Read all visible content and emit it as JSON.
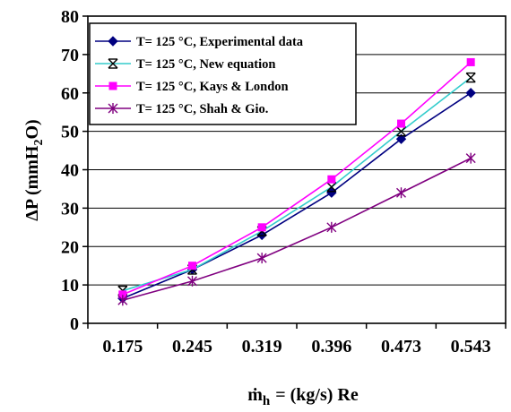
{
  "chart_data": {
    "type": "line",
    "categories": [
      "0.175",
      "0.245",
      "0.319",
      "0.396",
      "0.473",
      "0.543"
    ],
    "ylim": [
      0,
      80
    ],
    "yticks": [
      0,
      10,
      20,
      30,
      40,
      50,
      60,
      70,
      80
    ],
    "ylabel": {
      "prefix": "ΔP (mmH",
      "sub": "2",
      "suffix": "O)"
    },
    "xlabel": {
      "m": "ṁ",
      "sub": "h",
      "rest": "= (kg/s) Re"
    },
    "grid": "horizontal",
    "legend_position": "top-left",
    "series": [
      {
        "name": "T= 125 °C, Experimental data",
        "color": "#000080",
        "marker": "diamond",
        "values": [
          6.5,
          14,
          23,
          34,
          48,
          60
        ]
      },
      {
        "name": "T= 125 °C, New equation",
        "color": "#33cccc",
        "marker": "xstar",
        "values": [
          8.5,
          14,
          24,
          35.5,
          50,
          64
        ]
      },
      {
        "name": "T= 125 °C, Kays & London",
        "color": "#ff00ff",
        "marker": "square",
        "values": [
          7.5,
          15,
          25,
          37.5,
          52,
          68
        ]
      },
      {
        "name": "T= 125 °C, Shah & Gio.",
        "color": "#800080",
        "marker": "asterisk",
        "values": [
          6,
          11,
          17,
          25,
          34,
          43
        ]
      }
    ]
  }
}
